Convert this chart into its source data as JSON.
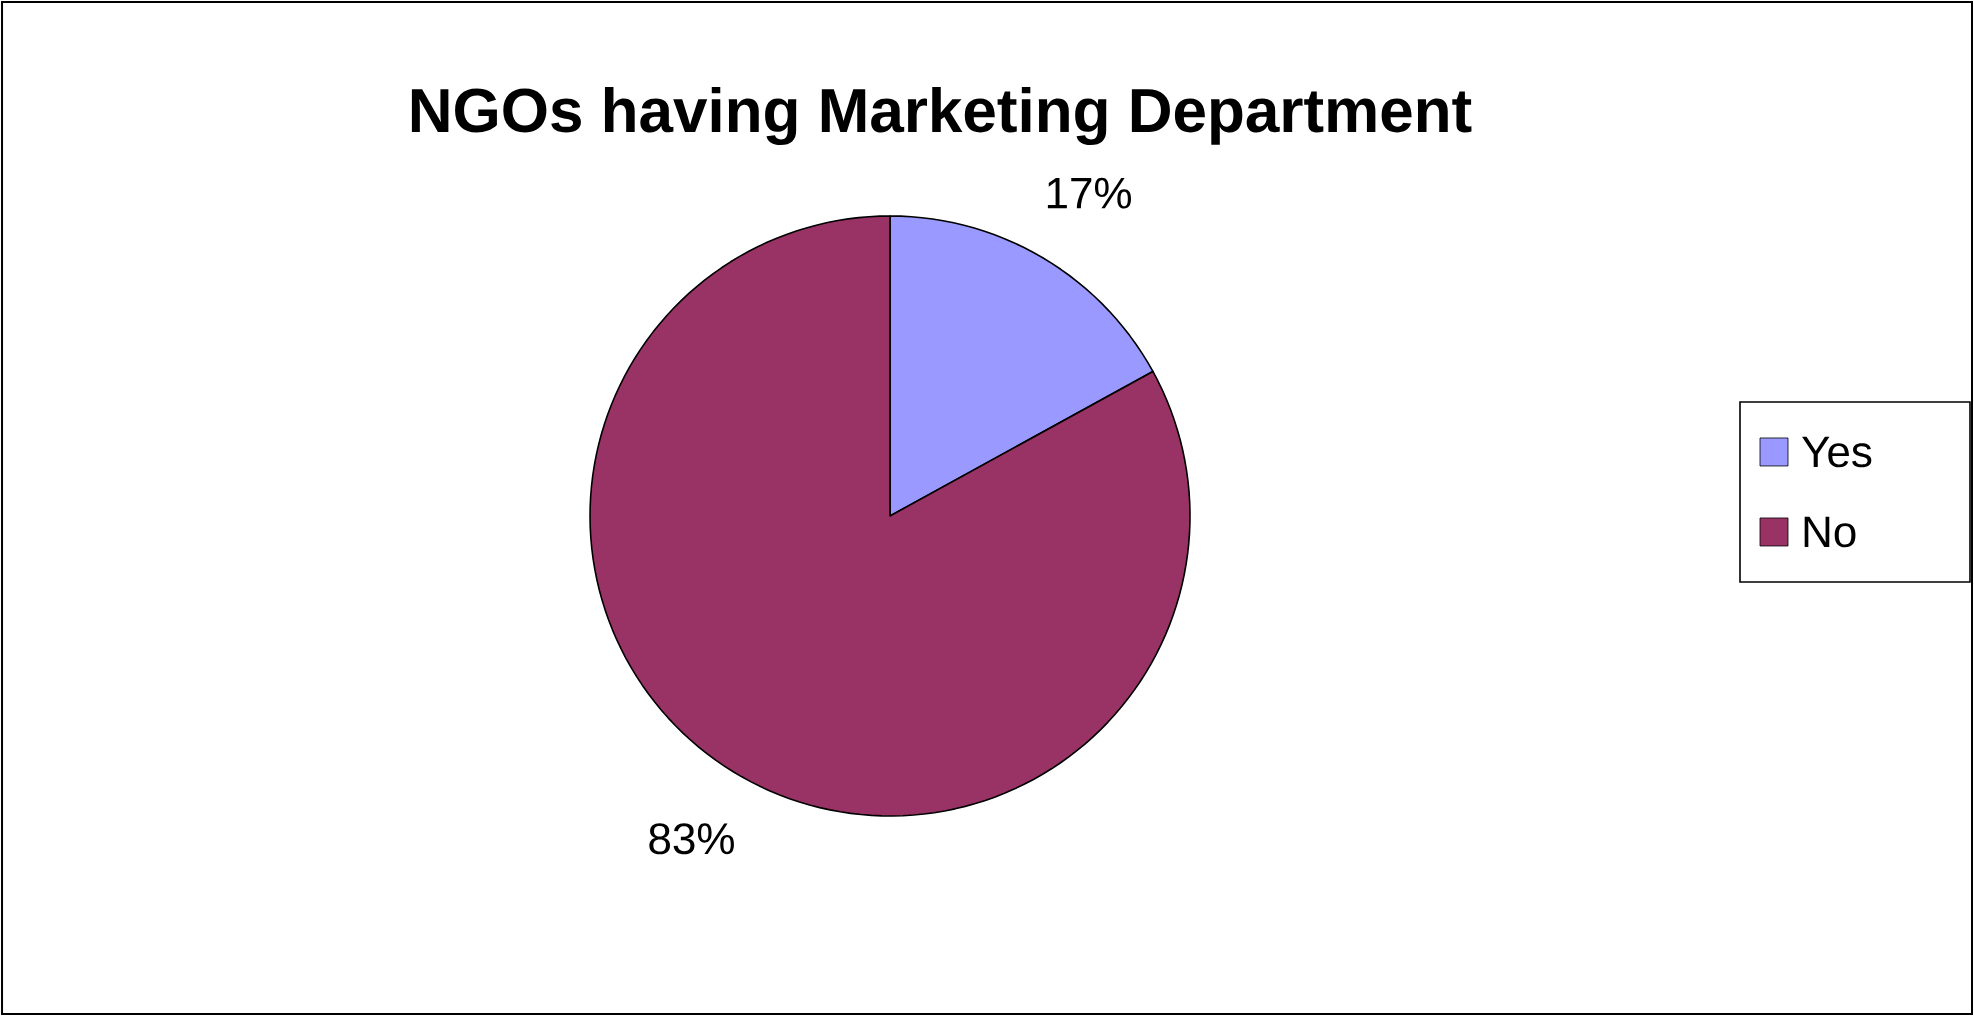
{
  "chart_data": {
    "type": "pie",
    "title": "NGOs having Marketing Department",
    "categories": [
      "Yes",
      "No"
    ],
    "values": [
      17,
      83
    ],
    "colors": [
      "#9999ff",
      "#993366"
    ],
    "value_labels": [
      "17%",
      "83%"
    ],
    "legend": "right"
  }
}
